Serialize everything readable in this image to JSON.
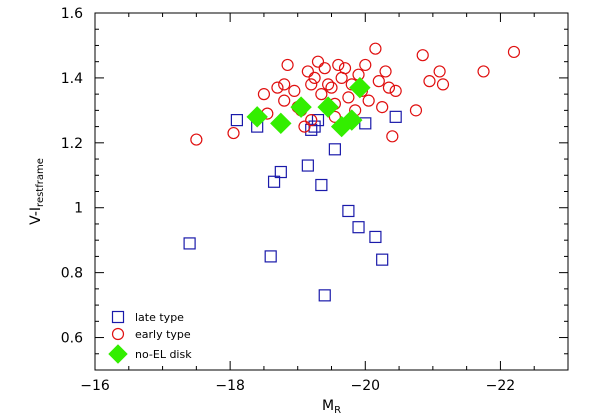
{
  "chart_data": {
    "type": "scatter",
    "xlabel": "M",
    "xlabel_sub": "R",
    "ylabel": "V-I",
    "ylabel_sub": "restframe",
    "xlim": [
      -16,
      -23
    ],
    "ylim": [
      0.5,
      1.6
    ],
    "x_reversed": true,
    "xticks": [
      -16,
      -18,
      -20,
      -22
    ],
    "xtick_labels": [
      "−16",
      "−18",
      "−20",
      "−22"
    ],
    "yticks": [
      0.6,
      0.8,
      1,
      1.2,
      1.4,
      1.6
    ],
    "ytick_labels": [
      "0.6",
      "0.8",
      "1",
      "1.2",
      "1.4",
      "1.6"
    ],
    "grid": false,
    "legend_position": "bottom-left",
    "series": [
      {
        "name": "late type",
        "marker": "open-square",
        "color": "#1a1aaa",
        "points": [
          [
            -17.4,
            0.89
          ],
          [
            -18.1,
            1.27
          ],
          [
            -18.4,
            1.25
          ],
          [
            -18.6,
            0.85
          ],
          [
            -18.65,
            1.08
          ],
          [
            -18.75,
            1.11
          ],
          [
            -19.15,
            1.13
          ],
          [
            -19.2,
            1.24
          ],
          [
            -19.3,
            1.27
          ],
          [
            -19.35,
            1.07
          ],
          [
            -19.4,
            0.73
          ],
          [
            -19.55,
            1.18
          ],
          [
            -19.75,
            0.99
          ],
          [
            -19.9,
            0.94
          ],
          [
            -20.0,
            1.26
          ],
          [
            -20.15,
            0.91
          ],
          [
            -20.25,
            0.84
          ],
          [
            -20.45,
            1.28
          ],
          [
            -19.25,
            1.25
          ]
        ]
      },
      {
        "name": "early type",
        "marker": "open-circle",
        "color": "#e01010",
        "points": [
          [
            -17.5,
            1.21
          ],
          [
            -18.05,
            1.23
          ],
          [
            -18.5,
            1.35
          ],
          [
            -18.55,
            1.29
          ],
          [
            -18.7,
            1.37
          ],
          [
            -18.8,
            1.38
          ],
          [
            -18.85,
            1.44
          ],
          [
            -18.95,
            1.36
          ],
          [
            -19.0,
            1.31
          ],
          [
            -19.05,
            1.3
          ],
          [
            -19.1,
            1.25
          ],
          [
            -19.15,
            1.42
          ],
          [
            -19.2,
            1.38
          ],
          [
            -19.25,
            1.4
          ],
          [
            -19.3,
            1.45
          ],
          [
            -19.35,
            1.35
          ],
          [
            -19.4,
            1.43
          ],
          [
            -19.45,
            1.38
          ],
          [
            -19.5,
            1.37
          ],
          [
            -19.55,
            1.32
          ],
          [
            -19.6,
            1.44
          ],
          [
            -19.65,
            1.4
          ],
          [
            -19.7,
            1.43
          ],
          [
            -19.75,
            1.34
          ],
          [
            -19.8,
            1.38
          ],
          [
            -19.85,
            1.3
          ],
          [
            -19.9,
            1.41
          ],
          [
            -19.95,
            1.36
          ],
          [
            -20.0,
            1.44
          ],
          [
            -20.05,
            1.33
          ],
          [
            -20.15,
            1.49
          ],
          [
            -20.2,
            1.39
          ],
          [
            -20.25,
            1.31
          ],
          [
            -20.3,
            1.42
          ],
          [
            -20.35,
            1.37
          ],
          [
            -20.4,
            1.22
          ],
          [
            -20.45,
            1.36
          ],
          [
            -20.75,
            1.3
          ],
          [
            -20.85,
            1.47
          ],
          [
            -20.95,
            1.39
          ],
          [
            -21.1,
            1.42
          ],
          [
            -21.15,
            1.38
          ],
          [
            -21.75,
            1.42
          ],
          [
            -22.2,
            1.48
          ],
          [
            -19.55,
            1.28
          ],
          [
            -19.2,
            1.27
          ],
          [
            -18.8,
            1.33
          ]
        ]
      },
      {
        "name": "no-EL disk",
        "marker": "filled-diamond",
        "color": "#33ee00",
        "points": [
          [
            -18.4,
            1.28
          ],
          [
            -18.75,
            1.26
          ],
          [
            -19.05,
            1.31
          ],
          [
            -19.45,
            1.31
          ],
          [
            -19.65,
            1.25
          ],
          [
            -19.8,
            1.27
          ],
          [
            -19.92,
            1.37
          ]
        ]
      }
    ]
  }
}
